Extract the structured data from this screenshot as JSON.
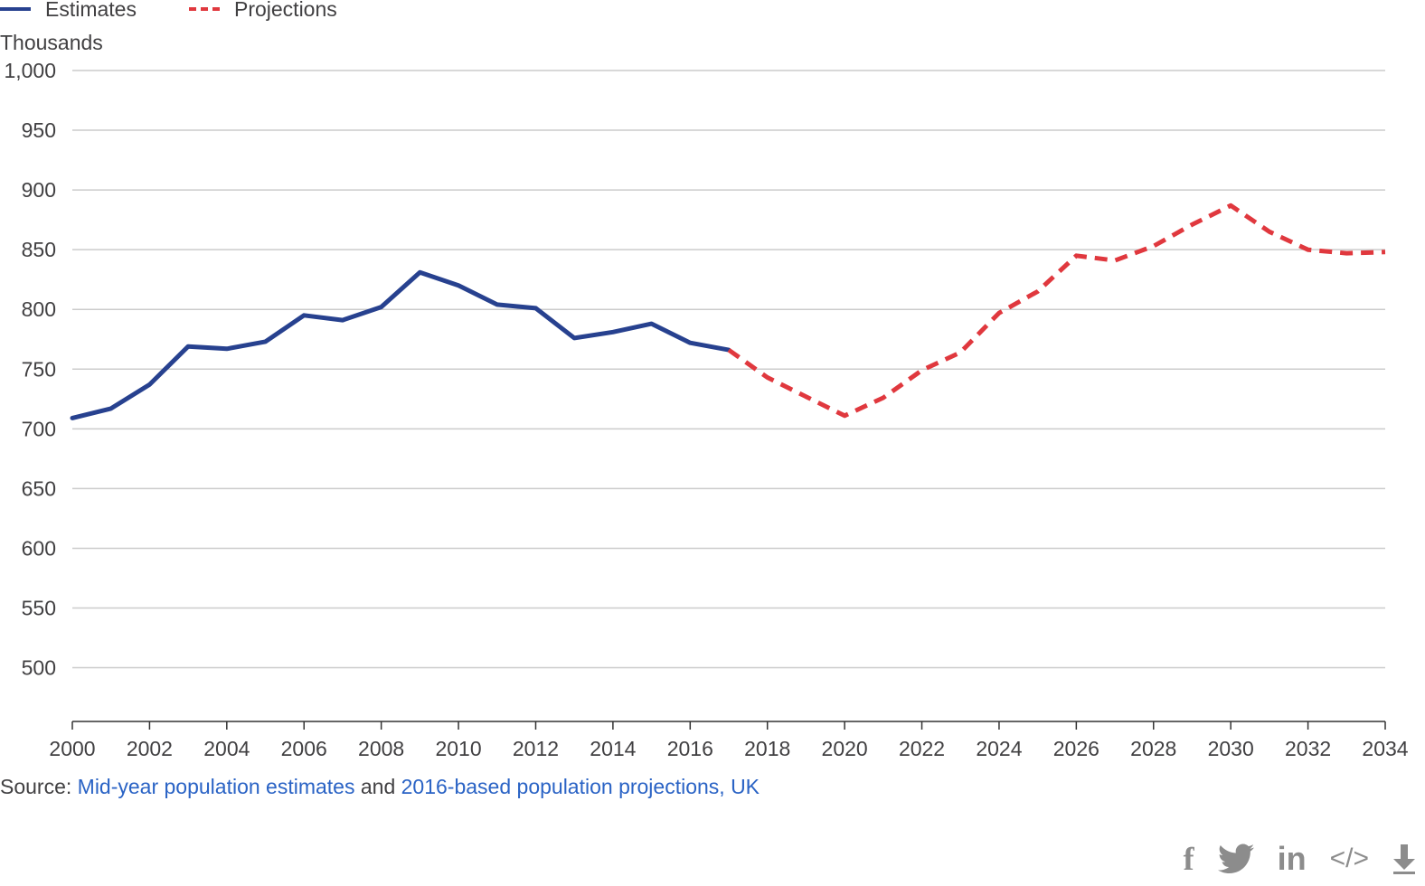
{
  "legend": {
    "estimates": "Estimates",
    "projections": "Projections"
  },
  "units_label": "Thousands",
  "source": {
    "prefix": "Source:",
    "link1": "Mid-year population estimates",
    "joiner": "and",
    "link2": "2016-based population projections, UK"
  },
  "share": {
    "facebook": "f",
    "linkedin": "in",
    "embed": "</>"
  },
  "colors": {
    "estimates": "#27418f",
    "projections": "#e0383e",
    "grid": "#cccccc",
    "link": "#2a63c5"
  },
  "chart_data": {
    "type": "line",
    "ylabel": "Thousands",
    "ylim": [
      455,
      1000
    ],
    "yticks": [
      500,
      550,
      600,
      650,
      700,
      750,
      800,
      850,
      900,
      950,
      1000
    ],
    "ytick_labels": [
      "500",
      "550",
      "600",
      "650",
      "700",
      "750",
      "800",
      "850",
      "900",
      "950",
      "1,000"
    ],
    "xlim": [
      2000,
      2034
    ],
    "xticks": [
      2000,
      2002,
      2004,
      2006,
      2008,
      2010,
      2012,
      2014,
      2016,
      2018,
      2020,
      2022,
      2024,
      2026,
      2028,
      2030,
      2032,
      2034
    ],
    "grid": true,
    "legend_position": "top-left",
    "series": [
      {
        "name": "Estimates",
        "style": "solid",
        "x": [
          2000,
          2001,
          2002,
          2003,
          2004,
          2005,
          2006,
          2007,
          2008,
          2009,
          2010,
          2011,
          2012,
          2013,
          2014,
          2015,
          2016,
          2017
        ],
        "y": [
          709,
          717,
          737,
          769,
          767,
          773,
          795,
          791,
          802,
          831,
          820,
          804,
          801,
          776,
          781,
          788,
          772,
          766
        ]
      },
      {
        "name": "Projections",
        "style": "dashed",
        "x": [
          2017,
          2018,
          2019,
          2020,
          2021,
          2022,
          2023,
          2024,
          2025,
          2026,
          2027,
          2028,
          2029,
          2030,
          2031,
          2032,
          2033,
          2034
        ],
        "y": [
          766,
          743,
          727,
          711,
          726,
          749,
          764,
          797,
          815,
          845,
          841,
          853,
          871,
          887,
          865,
          850,
          847,
          848
        ]
      }
    ]
  }
}
